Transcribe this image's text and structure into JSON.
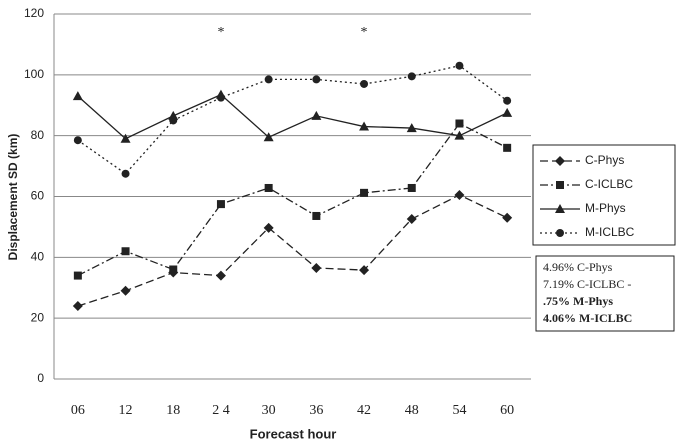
{
  "chart_data": {
    "type": "line",
    "y_label": "Displacement SD (km)",
    "x_label": "Forecast hour",
    "categories": [
      "06",
      "12",
      "18",
      "2 4",
      "30",
      "36",
      "42",
      "48",
      "54",
      "60"
    ],
    "ylim": [
      0,
      120
    ],
    "yticks": [
      0,
      20,
      40,
      60,
      80,
      100,
      120
    ],
    "grid": true,
    "series": [
      {
        "name": "C-Phys",
        "color": "#222222",
        "marker": "diamond",
        "dash": "dashed",
        "values": [
          24,
          29,
          35,
          34,
          49.7,
          36.5,
          35.8,
          52.6,
          60.5,
          53
        ]
      },
      {
        "name": "C-ICLBC",
        "color": "#222222",
        "marker": "square",
        "dash": "dashdot",
        "values": [
          34,
          42,
          36,
          57.5,
          62.8,
          53.6,
          61.2,
          62.8,
          84,
          76
        ]
      },
      {
        "name": "M-Phys",
        "color": "#222222",
        "marker": "triangle",
        "dash": "solid",
        "values": [
          93,
          79,
          86.5,
          93.5,
          79.5,
          86.5,
          83,
          82.5,
          80,
          87.5
        ]
      },
      {
        "name": "M-ICLBC",
        "color": "#222222",
        "marker": "circle",
        "dash": "dotted",
        "values": [
          78.5,
          67.5,
          85,
          92.5,
          98.5,
          98.5,
          97,
          99.5,
          103,
          91.5
        ]
      }
    ],
    "annotations": [
      {
        "x": "2 4",
        "text": "*"
      },
      {
        "x": "42",
        "text": "*"
      }
    ],
    "note_lines": [
      {
        "text": "4.96% C-Phys",
        "bold": false
      },
      {
        "text": "7.19% C-ICLBC -",
        "bold": false
      },
      {
        "text": ".75%  M-Phys",
        "bold": true
      },
      {
        "text": "4.06% M-ICLBC",
        "bold": true
      }
    ]
  }
}
